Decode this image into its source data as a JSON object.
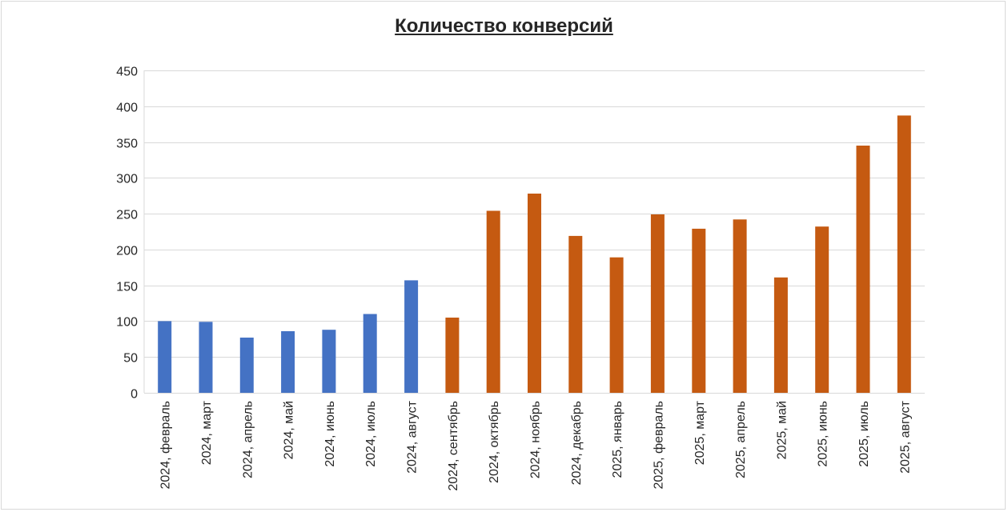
{
  "chart_data": {
    "type": "bar",
    "title": "Количество конверсий",
    "xlabel": "",
    "ylabel": "",
    "ylim": [
      0,
      450
    ],
    "yticks": [
      0,
      50,
      100,
      150,
      200,
      250,
      300,
      350,
      400,
      450
    ],
    "grid": true,
    "legend": "none",
    "categories": [
      "2024, февраль",
      "2024, март",
      "2024, апрель",
      "2024, май",
      "2024, июнь",
      "2024, июль",
      "2024, август",
      "2024, сентябрь",
      "2024, октябрь",
      "2024, ноябрь",
      "2024, декабрь",
      "2025, январь",
      "2025, февраль",
      "2025, март",
      "2025, апрель",
      "2025, май",
      "2025, июнь",
      "2025, июль",
      "2025, август"
    ],
    "values": [
      100,
      99,
      77,
      86,
      88,
      110,
      157,
      105,
      254,
      278,
      219,
      189,
      249,
      229,
      242,
      161,
      232,
      345,
      387
    ],
    "bar_colors": [
      "#4472c4",
      "#4472c4",
      "#4472c4",
      "#4472c4",
      "#4472c4",
      "#4472c4",
      "#4472c4",
      "#c55a11",
      "#c55a11",
      "#c55a11",
      "#c55a11",
      "#c55a11",
      "#c55a11",
      "#c55a11",
      "#c55a11",
      "#c55a11",
      "#c55a11",
      "#c55a11",
      "#c55a11"
    ]
  },
  "colors": {
    "series_blue": "#4472c4",
    "series_orange": "#c55a11",
    "gridline": "#d9d9d9",
    "axis_text": "#262626"
  }
}
